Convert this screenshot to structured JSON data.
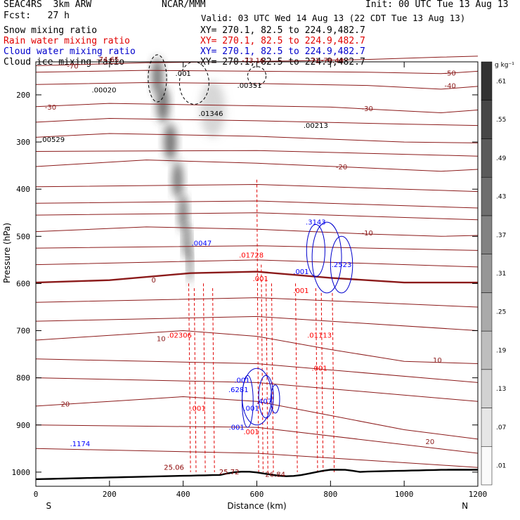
{
  "header": {
    "model_label": "SEAC4RS  3km ARW",
    "forecast_label": "Fcst:   27 h",
    "center_label": "NCAR/MMM",
    "init_label": "Init: 00 UTC Tue 13 Aug 13",
    "valid_label": "Valid: 03 UTC Wed 14 Aug 13 (22 CDT Tue 13 Aug 13)",
    "fields": [
      {
        "name": "Snow mixing ratio",
        "xsec": "XY= 270.1, 82.5 to 224.9,482.7",
        "color": "#000000"
      },
      {
        "name": "Rain water mixing ratio",
        "xsec": "XY= 270.1, 82.5 to 224.9,482.7",
        "color": "#ff0000"
      },
      {
        "name": "Cloud water mixing ratio",
        "xsec": "XY= 270.1, 82.5 to 224.9,482.7",
        "color": "#0000ff"
      },
      {
        "name": "Cloud ice mixing ratio",
        "xsec": "XY= 270.1, 82.5 to 224.9,482.7",
        "color": "#000000"
      }
    ]
  },
  "chart_data": {
    "type": "heatmap",
    "xlabel": "Distance (km)",
    "ylabel": "Pressure (hPa)",
    "xlim": [
      0,
      1200
    ],
    "ylim": [
      1030,
      130
    ],
    "x_ticks": [
      0,
      200,
      400,
      600,
      800,
      1000,
      1200
    ],
    "y_ticks": [
      200,
      300,
      400,
      500,
      600,
      700,
      800,
      900,
      1000
    ],
    "endpoint_labels": {
      "left": "S",
      "right": "N"
    },
    "colorbar": {
      "unit": "g kg⁻¹",
      "levels": [
        ".01",
        ".07",
        ".13",
        ".19",
        ".25",
        ".31",
        ".37",
        ".43",
        ".49",
        ".55",
        ".61"
      ]
    },
    "temperature_contours": [
      {
        "label": "-70",
        "levels": [
          [
            0,
            138
          ],
          [
            150,
            135
          ],
          [
            300,
            132
          ],
          [
            500,
            130
          ],
          [
            700,
            128
          ],
          [
            900,
            125
          ],
          [
            1100,
            120
          ],
          [
            1200,
            118
          ]
        ]
      },
      {
        "label": "-50",
        "levels": [
          [
            0,
            152
          ],
          [
            300,
            148
          ],
          [
            600,
            150
          ],
          [
            900,
            152
          ],
          [
            1100,
            155
          ],
          [
            1200,
            150
          ]
        ]
      },
      {
        "label": "-40",
        "levels": [
          [
            0,
            178
          ],
          [
            300,
            174
          ],
          [
            600,
            176
          ],
          [
            900,
            180
          ],
          [
            1100,
            188
          ],
          [
            1200,
            182
          ]
        ]
      },
      {
        "label": "-30",
        "levels": [
          [
            0,
            225
          ],
          [
            200,
            218
          ],
          [
            500,
            222
          ],
          [
            800,
            226
          ],
          [
            1100,
            238
          ],
          [
            1200,
            232
          ]
        ]
      },
      {
        "label": "-20",
        "levels": [
          [
            0,
            352
          ],
          [
            300,
            338
          ],
          [
            600,
            345
          ],
          [
            900,
            355
          ],
          [
            1100,
            362
          ],
          [
            1200,
            358
          ]
        ]
      },
      {
        "label": "-10",
        "levels": [
          [
            0,
            490
          ],
          [
            300,
            480
          ],
          [
            600,
            485
          ],
          [
            900,
            495
          ],
          [
            1100,
            500
          ],
          [
            1200,
            498
          ]
        ]
      },
      {
        "label": "0",
        "levels": [
          [
            0,
            598
          ],
          [
            200,
            593
          ],
          [
            420,
            578
          ],
          [
            600,
            575
          ],
          [
            800,
            588
          ],
          [
            1000,
            598
          ],
          [
            1200,
            598
          ]
        ]
      },
      {
        "label": "10",
        "levels": [
          [
            0,
            720
          ],
          [
            200,
            710
          ],
          [
            400,
            700
          ],
          [
            600,
            712
          ],
          [
            800,
            740
          ],
          [
            1000,
            765
          ],
          [
            1200,
            770
          ]
        ]
      },
      {
        "label": "20",
        "levels": [
          [
            0,
            860
          ],
          [
            200,
            850
          ],
          [
            400,
            840
          ],
          [
            600,
            850
          ],
          [
            800,
            880
          ],
          [
            1000,
            910
          ],
          [
            1200,
            930
          ]
        ]
      }
    ],
    "annotations": [
      {
        "text": "-74.65",
        "x": 195,
        "y": 130,
        "color": "#8b0000"
      },
      {
        "text": "-73.16",
        "x": 590,
        "y": 132,
        "color": "#8b0000"
      },
      {
        "text": "-71",
        "x": 755,
        "y": 132,
        "color": "#8b0000"
      },
      {
        "text": "-70.44",
        "x": 805,
        "y": 132,
        "color": "#8b0000"
      },
      {
        "text": ".00020",
        "x": 185,
        "y": 195,
        "color": "#000000"
      },
      {
        "text": ".001",
        "x": 400,
        "y": 160,
        "color": "#000000"
      },
      {
        "text": ".00351",
        "x": 580,
        "y": 185,
        "color": "#000000"
      },
      {
        "text": ".01346",
        "x": 475,
        "y": 245,
        "color": "#000000"
      },
      {
        "text": ".00213",
        "x": 760,
        "y": 270,
        "color": "#000000"
      },
      {
        "text": ".00529",
        "x": 45,
        "y": 300,
        "color": "#000000"
      },
      {
        "text": ".0047",
        "x": 450,
        "y": 520,
        "color": "#0000ff"
      },
      {
        "text": ".3143",
        "x": 760,
        "y": 475,
        "color": "#0000ff"
      },
      {
        "text": ".2523",
        "x": 830,
        "y": 565,
        "color": "#0000ff"
      },
      {
        "text": ".01728",
        "x": 585,
        "y": 545,
        "color": "#ff0000"
      },
      {
        "text": ".001",
        "x": 610,
        "y": 595,
        "color": "#ff0000"
      },
      {
        "text": ".001",
        "x": 720,
        "y": 580,
        "color": "#0000ff"
      },
      {
        "text": ".001",
        "x": 720,
        "y": 620,
        "color": "#ff0000"
      },
      {
        "text": ".02306",
        "x": 390,
        "y": 715,
        "color": "#ff0000"
      },
      {
        "text": ".01113",
        "x": 770,
        "y": 715,
        "color": "#ff0000"
      },
      {
        "text": ".001",
        "x": 770,
        "y": 785,
        "color": "#ff0000"
      },
      {
        "text": ".001",
        "x": 560,
        "y": 810,
        "color": "#0000ff"
      },
      {
        "text": ".6281",
        "x": 550,
        "y": 830,
        "color": "#0000ff"
      },
      {
        "text": ".001",
        "x": 440,
        "y": 870,
        "color": "#ff0000"
      },
      {
        "text": ".407",
        "x": 620,
        "y": 855,
        "color": "#0000ff"
      },
      {
        "text": ".001",
        "x": 585,
        "y": 870,
        "color": "#0000ff"
      },
      {
        "text": ".001",
        "x": 545,
        "y": 910,
        "color": "#0000ff"
      },
      {
        "text": ".001",
        "x": 585,
        "y": 920,
        "color": "#ff0000"
      },
      {
        "text": ".1174",
        "x": 120,
        "y": 945,
        "color": "#0000ff"
      },
      {
        "text": "25.06",
        "x": 375,
        "y": 995,
        "color": "#8b0000"
      },
      {
        "text": "25.72",
        "x": 525,
        "y": 1005,
        "color": "#8b0000"
      },
      {
        "text": "26.84",
        "x": 650,
        "y": 1010,
        "color": "#8b0000"
      }
    ]
  }
}
